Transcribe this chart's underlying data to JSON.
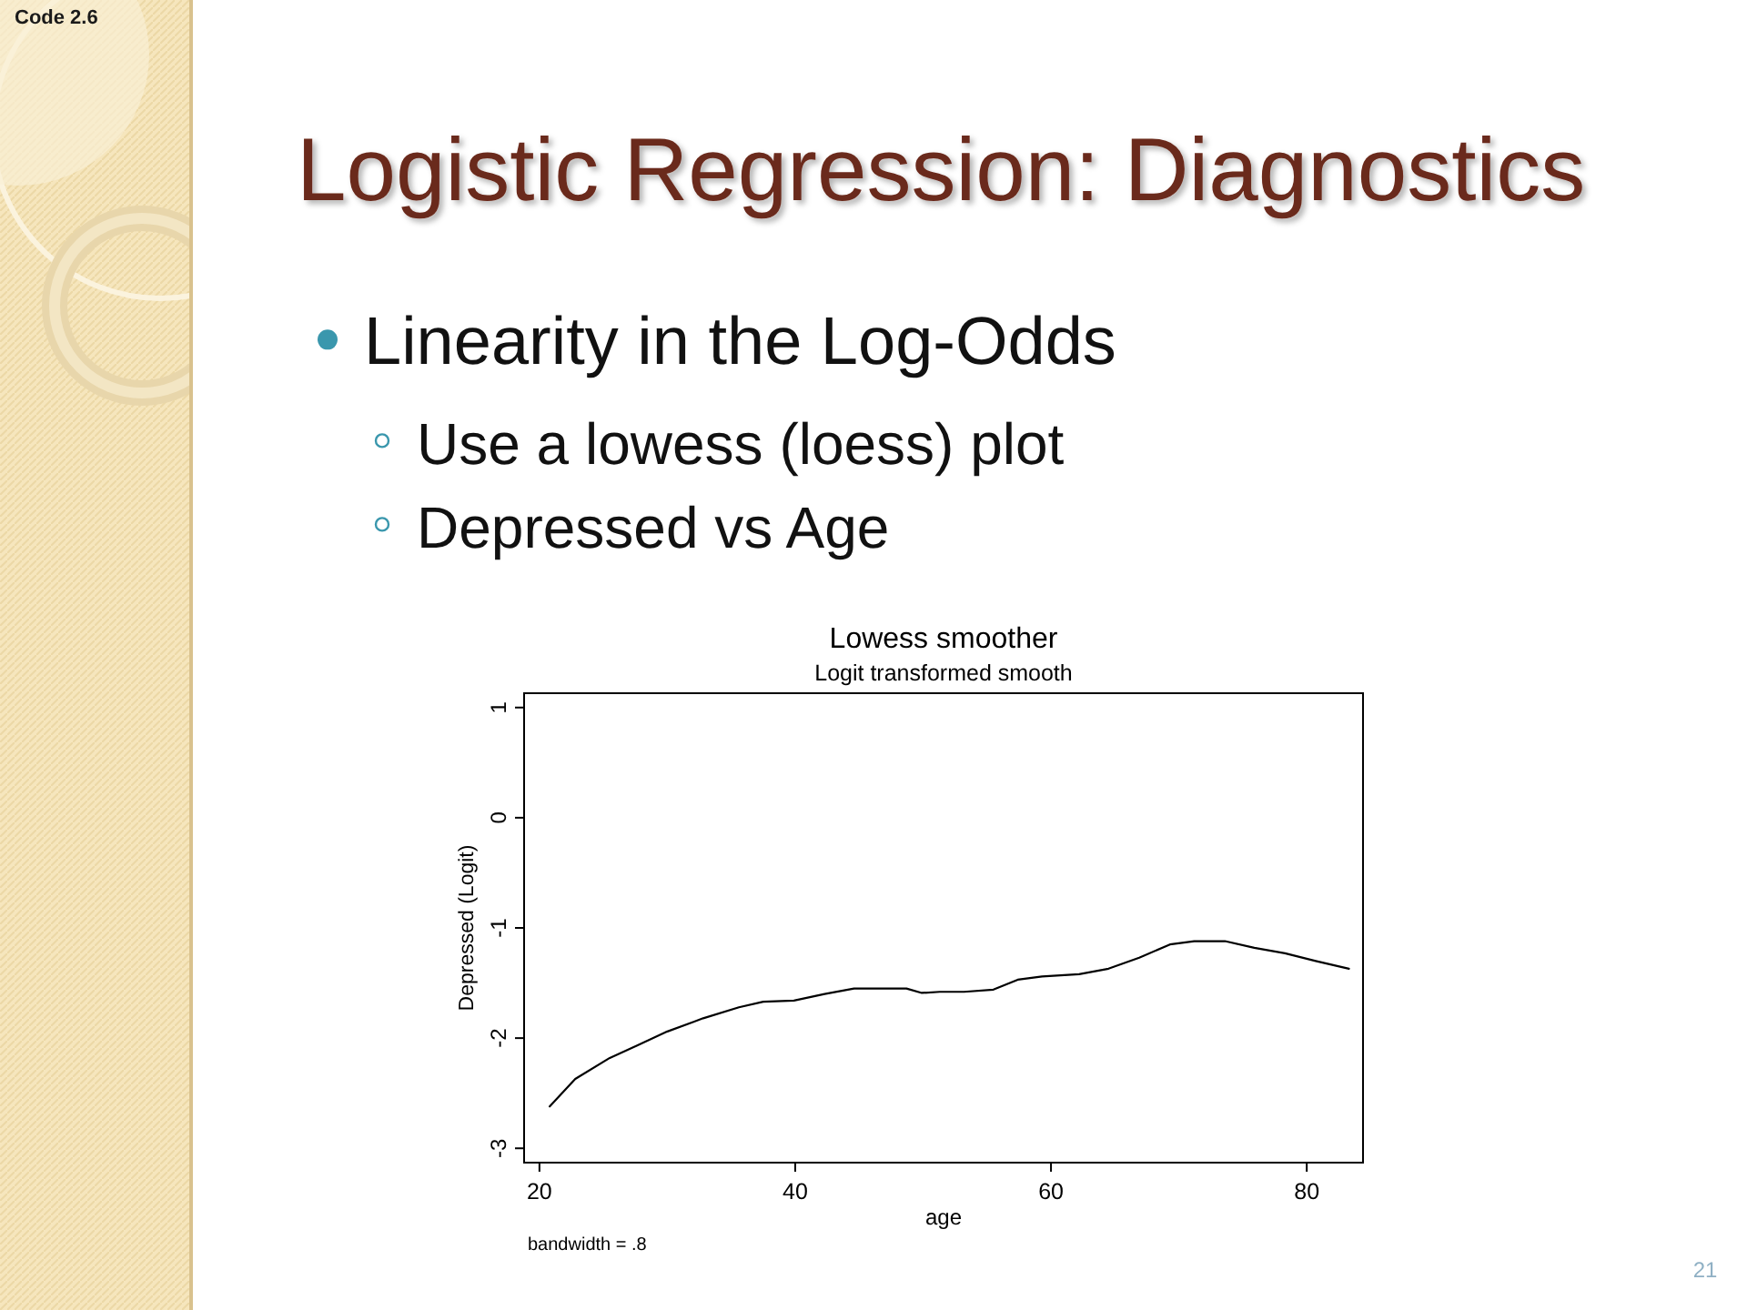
{
  "chart_data": {
    "type": "line",
    "title": "Lowess smoother",
    "subtitle": "Logit transformed smooth",
    "xlabel": "age",
    "ylabel": "Depressed (Logit)",
    "annotations": [
      "Code 2.6",
      "Logistic Regression: Diagnostics",
      "Linearity in the Log-Odds",
      "Use a lowess (loess) plot",
      "Depressed vs Age",
      "bandwidth = .8",
      "21"
    ],
    "xlim": [
      18.8,
      84.4
    ],
    "ylim": [
      -3.13,
      1.13
    ],
    "xticks": [
      20,
      40,
      60,
      80
    ],
    "yticks": [
      -3,
      -2,
      -1,
      0,
      1
    ],
    "series": [
      {
        "color": "#000000",
        "x": [
          20.8,
          22.8,
          25.5,
          27.6,
          30.0,
          32.8,
          35.6,
          37.5,
          39.9,
          42.3,
          44.6,
          48.7,
          49.9,
          51.3,
          53.2,
          55.5,
          57.4,
          59.3,
          62.2,
          64.5,
          66.9,
          69.3,
          71.2,
          73.6,
          75.9,
          78.3,
          80.7,
          83.3
        ],
        "values": [
          -2.62,
          -2.37,
          -2.18,
          -2.07,
          -1.94,
          -1.82,
          -1.72,
          -1.67,
          -1.66,
          -1.6,
          -1.55,
          -1.55,
          -1.59,
          -1.58,
          -1.58,
          -1.56,
          -1.47,
          -1.44,
          -1.42,
          -1.37,
          -1.27,
          -1.15,
          -1.12,
          -1.12,
          -1.18,
          -1.23,
          -1.3,
          -1.37
        ]
      }
    ]
  }
}
